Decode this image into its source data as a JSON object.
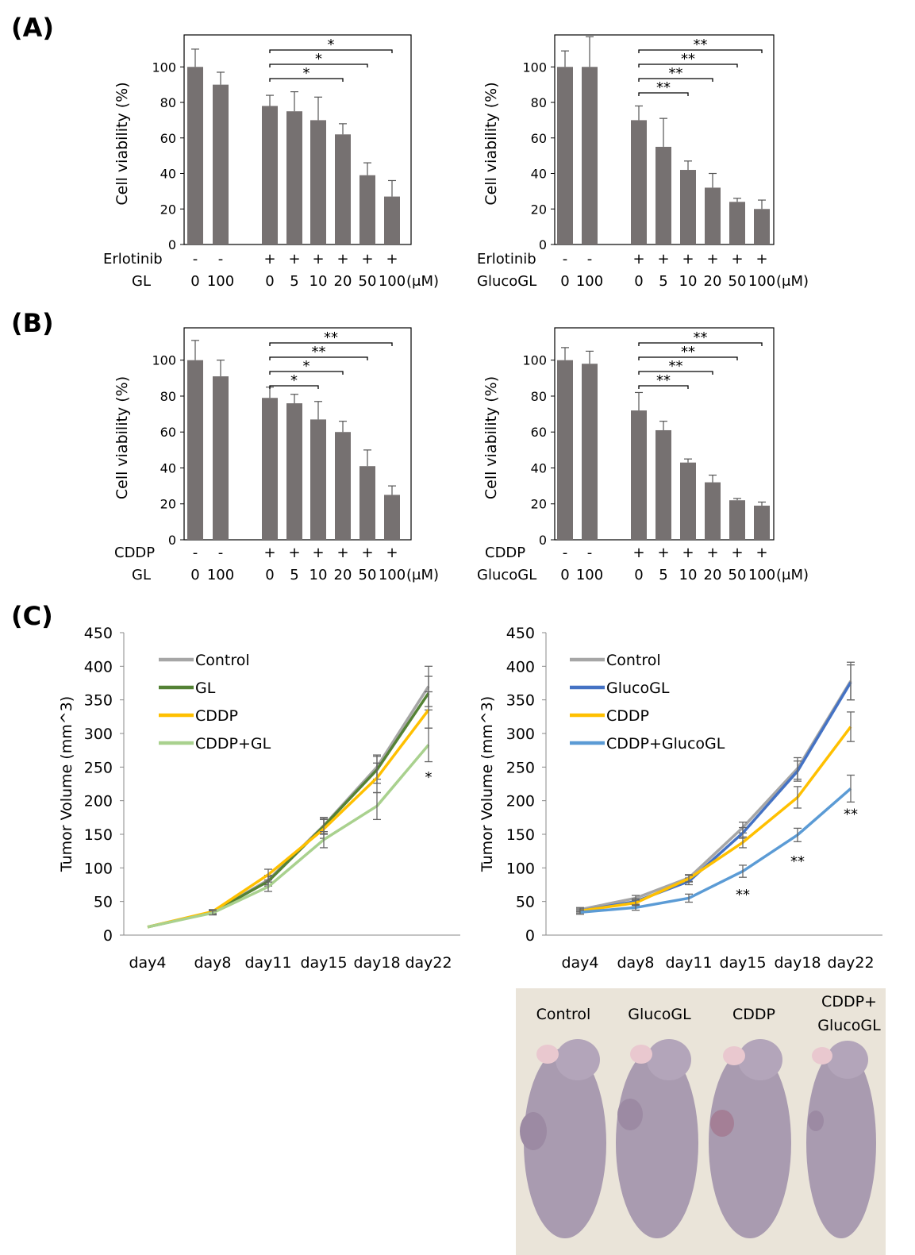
{
  "panels": {
    "A": "(A)",
    "B": "(B)",
    "C": "(C)"
  },
  "colors": {
    "bar": "#767171",
    "control": "#a6a6a6",
    "gl": "#548235",
    "cddp": "#ffc000",
    "cddp_gl": "#a9d18e",
    "glucogl": "#4472c4",
    "cddp_glucogl": "#5b9bd5",
    "error": "#595959",
    "photo_bg": "#eae4d9",
    "mouse": "#a99bb0"
  },
  "chart_data": [
    {
      "id": "A-left",
      "type": "bar",
      "ylabel": "Cell viability (%)",
      "ylim": [
        0,
        118
      ],
      "yticks": [
        0,
        20,
        40,
        60,
        80,
        100
      ],
      "drug_label": "Erlotinib",
      "compound_label": "GL",
      "unit": "(μM)",
      "drug_signs": [
        "-",
        "-",
        "+",
        "+",
        "+",
        "+",
        "+",
        "+"
      ],
      "compound_doses": [
        "0",
        "100",
        "0",
        "5",
        "10",
        "20",
        "50",
        "100"
      ],
      "values": [
        100,
        90,
        78,
        75,
        70,
        62,
        39,
        27
      ],
      "errors": [
        10,
        7,
        6,
        11,
        13,
        6,
        7,
        9
      ],
      "significance": [
        {
          "from": 2,
          "to": 5,
          "mark": "*"
        },
        {
          "from": 2,
          "to": 6,
          "mark": "*"
        },
        {
          "from": 2,
          "to": 7,
          "mark": "*"
        }
      ]
    },
    {
      "id": "A-right",
      "type": "bar",
      "ylabel": "Cell viability (%)",
      "ylim": [
        0,
        118
      ],
      "yticks": [
        0,
        20,
        40,
        60,
        80,
        100
      ],
      "drug_label": "Erlotinib",
      "compound_label": "GlucoGL",
      "unit": "(μM)",
      "drug_signs": [
        "-",
        "-",
        "+",
        "+",
        "+",
        "+",
        "+",
        "+"
      ],
      "compound_doses": [
        "0",
        "100",
        "0",
        "5",
        "10",
        "20",
        "50",
        "100"
      ],
      "values": [
        100,
        100,
        70,
        55,
        42,
        32,
        24,
        20
      ],
      "errors": [
        9,
        17,
        8,
        16,
        5,
        8,
        2,
        5
      ],
      "significance": [
        {
          "from": 2,
          "to": 4,
          "mark": "**"
        },
        {
          "from": 2,
          "to": 5,
          "mark": "**"
        },
        {
          "from": 2,
          "to": 6,
          "mark": "**"
        },
        {
          "from": 2,
          "to": 7,
          "mark": "**"
        }
      ]
    },
    {
      "id": "B-left",
      "type": "bar",
      "ylabel": "Cell viability (%)",
      "ylim": [
        0,
        118
      ],
      "yticks": [
        0,
        20,
        40,
        60,
        80,
        100
      ],
      "drug_label": "CDDP",
      "compound_label": "GL",
      "unit": "(μM)",
      "drug_signs": [
        "-",
        "-",
        "+",
        "+",
        "+",
        "+",
        "+",
        "+"
      ],
      "compound_doses": [
        "0",
        "100",
        "0",
        "5",
        "10",
        "20",
        "50",
        "100"
      ],
      "values": [
        100,
        91,
        79,
        76,
        67,
        60,
        41,
        25
      ],
      "errors": [
        11,
        9,
        6,
        5,
        10,
        6,
        9,
        5
      ],
      "significance": [
        {
          "from": 2,
          "to": 4,
          "mark": "*"
        },
        {
          "from": 2,
          "to": 5,
          "mark": "*"
        },
        {
          "from": 2,
          "to": 6,
          "mark": "**"
        },
        {
          "from": 2,
          "to": 7,
          "mark": "**"
        }
      ]
    },
    {
      "id": "B-right",
      "type": "bar",
      "ylabel": "Cell viability (%)",
      "ylim": [
        0,
        118
      ],
      "yticks": [
        0,
        20,
        40,
        60,
        80,
        100
      ],
      "drug_label": "CDDP",
      "compound_label": "GlucoGL",
      "unit": "(μM)",
      "drug_signs": [
        "-",
        "-",
        "+",
        "+",
        "+",
        "+",
        "+",
        "+"
      ],
      "compound_doses": [
        "0",
        "100",
        "0",
        "5",
        "10",
        "20",
        "50",
        "100"
      ],
      "values": [
        100,
        98,
        72,
        61,
        43,
        32,
        22,
        19
      ],
      "errors": [
        7,
        7,
        10,
        5,
        2,
        4,
        1,
        2
      ],
      "significance": [
        {
          "from": 2,
          "to": 4,
          "mark": "**"
        },
        {
          "from": 2,
          "to": 5,
          "mark": "**"
        },
        {
          "from": 2,
          "to": 6,
          "mark": "**"
        },
        {
          "from": 2,
          "to": 7,
          "mark": "**"
        }
      ]
    },
    {
      "id": "C-left",
      "type": "line",
      "ylabel": "Tumor Volume (mm^3)",
      "ylim": [
        0,
        450
      ],
      "yticks": [
        0,
        50,
        100,
        150,
        200,
        250,
        300,
        350,
        400,
        450
      ],
      "categories": [
        "day4",
        "day8",
        "day11",
        "day15",
        "day18",
        "day22"
      ],
      "series": [
        {
          "name": "Control",
          "color_key": "control",
          "values": [
            12,
            34,
            82,
            163,
            250,
            370
          ],
          "errors": [
            0,
            3,
            7,
            12,
            18,
            30
          ]
        },
        {
          "name": "GL",
          "color_key": "gl",
          "values": [
            12,
            34,
            80,
            162,
            246,
            360
          ],
          "errors": [
            0,
            3,
            7,
            12,
            20,
            25
          ]
        },
        {
          "name": "CDDP",
          "color_key": "cddp",
          "values": [
            12,
            35,
            90,
            158,
            234,
            335
          ],
          "errors": [
            0,
            3,
            8,
            14,
            22,
            27
          ]
        },
        {
          "name": "CDDP+GL",
          "color_key": "cddp_gl",
          "values": [
            12,
            33,
            72,
            142,
            192,
            283
          ],
          "errors": [
            0,
            3,
            7,
            12,
            20,
            25
          ]
        }
      ],
      "annotations": [
        {
          "category": 5,
          "value": 235,
          "text": "*"
        }
      ]
    },
    {
      "id": "C-right",
      "type": "line",
      "ylabel": "Tumor Volume (mm^3)",
      "ylim": [
        0,
        450
      ],
      "yticks": [
        0,
        50,
        100,
        150,
        200,
        250,
        300,
        350,
        400,
        450
      ],
      "categories": [
        "day4",
        "day8",
        "day11",
        "day15",
        "day18",
        "day22"
      ],
      "series": [
        {
          "name": "Control",
          "color_key": "control",
          "values": [
            38,
            55,
            85,
            160,
            248,
            378
          ],
          "errors": [
            3,
            4,
            5,
            8,
            16,
            28
          ]
        },
        {
          "name": "GlucoGL",
          "color_key": "glucogl",
          "values": [
            36,
            50,
            80,
            152,
            244,
            376
          ],
          "errors": [
            3,
            4,
            5,
            8,
            15,
            26
          ]
        },
        {
          "name": "CDDP",
          "color_key": "cddp",
          "values": [
            36,
            48,
            84,
            138,
            205,
            310
          ],
          "errors": [
            3,
            4,
            5,
            8,
            16,
            22
          ]
        },
        {
          "name": "CDDP+GlucoGL",
          "color_key": "cddp_glucogl",
          "values": [
            34,
            41,
            55,
            95,
            149,
            218
          ],
          "errors": [
            3,
            4,
            6,
            9,
            10,
            20
          ]
        }
      ],
      "annotations": [
        {
          "category": 3,
          "value": 60,
          "text": "**"
        },
        {
          "category": 4,
          "value": 110,
          "text": "**"
        },
        {
          "category": 5,
          "value": 180,
          "text": "**"
        }
      ]
    }
  ],
  "photo": {
    "labels": [
      "Control",
      "GlucoGL",
      "CDDP",
      "CDDP+",
      "GlucoGL"
    ]
  }
}
